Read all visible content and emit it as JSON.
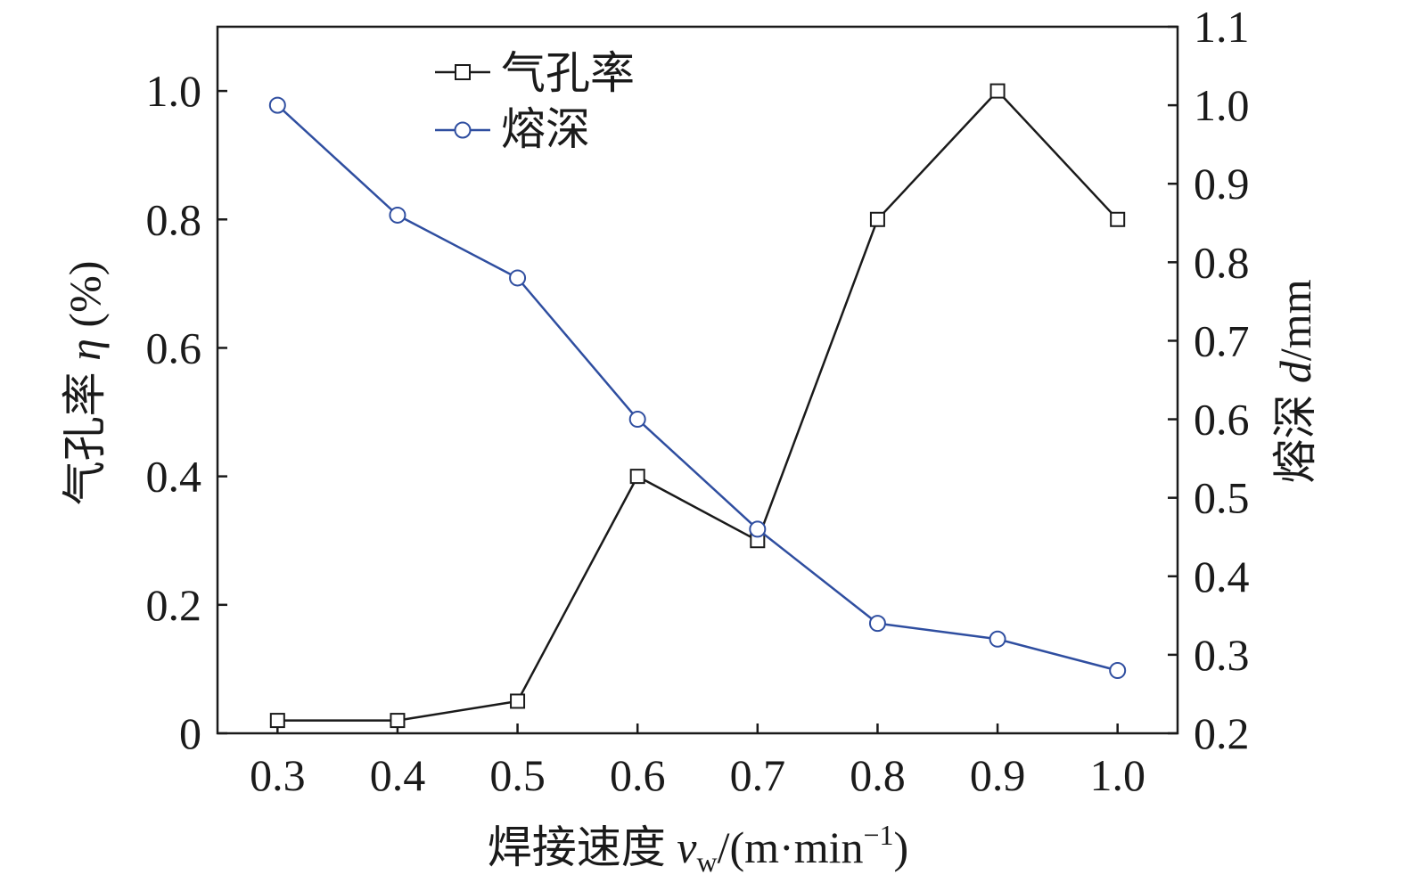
{
  "chart_data": {
    "type": "line",
    "x": [
      0.3,
      0.4,
      0.5,
      0.6,
      0.7,
      0.8,
      0.9,
      1.0
    ],
    "x_tick_labels": [
      "0.3",
      "0.4",
      "0.5",
      "0.6",
      "0.7",
      "0.8",
      "0.9",
      "1.0"
    ],
    "xlim": [
      0.25,
      1.05
    ],
    "xlabel": {
      "prefix": "焊接速度 ",
      "symbol": "v",
      "subscript": "w",
      "unit_open": "/(m·min",
      "superscript": "−1",
      "unit_close": ")"
    },
    "y_left": {
      "lim": [
        0,
        1.1
      ],
      "ticks": [
        0,
        0.2,
        0.4,
        0.6,
        0.8,
        1.0
      ],
      "tick_labels": [
        "0",
        "0.2",
        "0.4",
        "0.6",
        "0.8",
        "1.0"
      ],
      "label_prefix": "气孔率 ",
      "label_symbol": "η",
      "label_suffix": " (%)"
    },
    "y_right": {
      "lim": [
        0.2,
        1.1
      ],
      "ticks": [
        0.2,
        0.3,
        0.4,
        0.5,
        0.6,
        0.7,
        0.8,
        0.9,
        1.0,
        1.1
      ],
      "tick_labels": [
        "0.2",
        "0.3",
        "0.4",
        "0.5",
        "0.6",
        "0.7",
        "0.8",
        "0.9",
        "1.0",
        "1.1"
      ],
      "label_prefix": "熔深 ",
      "label_symbol": "d",
      "label_suffix": "/mm"
    },
    "series": [
      {
        "name": "气孔率",
        "axis": "left",
        "marker": "square",
        "color": "#1a1a1a",
        "values": [
          0.02,
          0.02,
          0.05,
          0.4,
          0.3,
          0.8,
          1.0,
          0.8
        ]
      },
      {
        "name": "熔深",
        "axis": "right",
        "marker": "circle",
        "color": "#2f4ea0",
        "values": [
          1.0,
          0.86,
          0.78,
          0.6,
          0.46,
          0.34,
          0.32,
          0.28
        ]
      }
    ],
    "legend_position": "top-left",
    "grid": false
  }
}
